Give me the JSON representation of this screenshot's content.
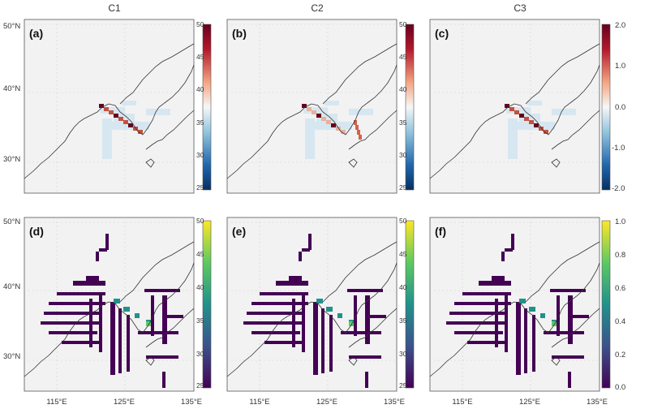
{
  "columns": [
    "C1",
    "C2",
    "C3"
  ],
  "lat_labels": [
    "50°N",
    "40°N",
    "30°N"
  ],
  "lon_labels": [
    "115°E",
    "125°E",
    "135°E"
  ],
  "panels": [
    {
      "label": "(a)",
      "type": "diverging",
      "cbar_ticks": [
        "50",
        "45",
        "40",
        "35",
        "30",
        "25"
      ]
    },
    {
      "label": "(b)",
      "type": "diverging",
      "cbar_ticks": [
        "50",
        "45",
        "40",
        "35",
        "30",
        "25"
      ]
    },
    {
      "label": "(c)",
      "type": "diverging",
      "cbar_ticks": [
        "2.0",
        "1.0",
        "0.0",
        "-1.0",
        "-2.0"
      ]
    },
    {
      "label": "(d)",
      "type": "sequential",
      "cbar_ticks": [
        "50",
        "45",
        "40",
        "35",
        "30",
        "25"
      ]
    },
    {
      "label": "(e)",
      "type": "sequential",
      "cbar_ticks": [
        "50",
        "45",
        "40",
        "35",
        "30",
        "25"
      ]
    },
    {
      "label": "(f)",
      "type": "sequential",
      "cbar_ticks": [
        "1.0",
        "0.8",
        "0.6",
        "0.4",
        "0.2",
        "0.0"
      ]
    }
  ],
  "colors": {
    "map_background": "#f2f2f2",
    "diverging_low": "#1f4e8c",
    "diverging_mid": "#f7f7f7",
    "diverging_high": "#67001f",
    "viridis_low": "#440154",
    "viridis_high": "#fde725"
  }
}
